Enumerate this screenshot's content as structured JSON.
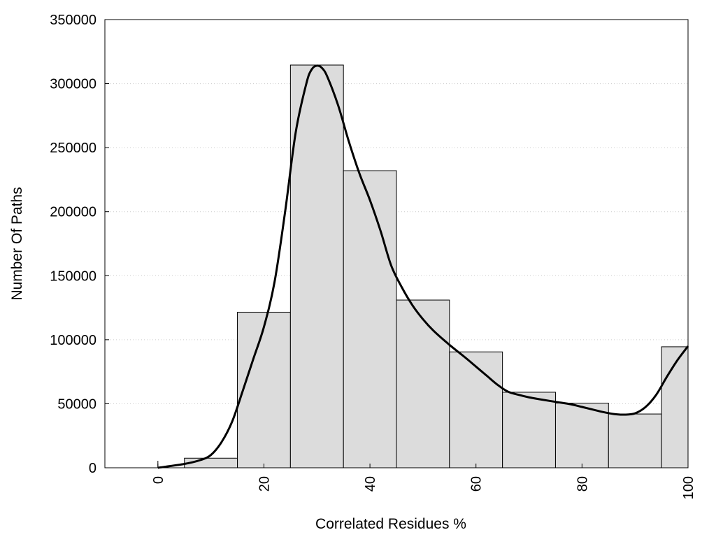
{
  "chart_data": {
    "type": "bar",
    "title": "",
    "xlabel": "Correlated Residues %",
    "ylabel": "Number Of Paths",
    "xlim": [
      -10,
      100
    ],
    "ylim": [
      0,
      350000
    ],
    "xticks": [
      "0",
      "20",
      "40",
      "60",
      "80",
      "100"
    ],
    "yticks": [
      "0",
      "50000",
      "100000",
      "150000",
      "200000",
      "250000",
      "300000",
      "350000"
    ],
    "grid": "horizontal dotted",
    "legend": "none",
    "colors": {
      "bar_fill": "#dcdcdc",
      "bar_edge": "#000000",
      "curve": "#000000",
      "grid": "#cccccc"
    },
    "bars": [
      {
        "x0": -5,
        "x1": 5,
        "value": 0
      },
      {
        "x0": 5,
        "x1": 15,
        "value": 7500
      },
      {
        "x0": 15,
        "x1": 25,
        "value": 121500
      },
      {
        "x0": 25,
        "x1": 35,
        "value": 314500
      },
      {
        "x0": 35,
        "x1": 45,
        "value": 232000
      },
      {
        "x0": 45,
        "x1": 55,
        "value": 131000
      },
      {
        "x0": 55,
        "x1": 65,
        "value": 90500
      },
      {
        "x0": 65,
        "x1": 75,
        "value": 59000
      },
      {
        "x0": 75,
        "x1": 85,
        "value": 50500
      },
      {
        "x0": 85,
        "x1": 95,
        "value": 42000
      },
      {
        "x0": 95,
        "x1": 100,
        "value": 94500
      }
    ],
    "curve": {
      "x": [
        0,
        5,
        8,
        10,
        12,
        14,
        16,
        18,
        20,
        22,
        24,
        26,
        28,
        29,
        30,
        31,
        32,
        34,
        36,
        38,
        40,
        42,
        44,
        46,
        48,
        50,
        52,
        55,
        58,
        60,
        62,
        64,
        66,
        68,
        70,
        72,
        75,
        78,
        80,
        82,
        84,
        86,
        88,
        90,
        92,
        94,
        96,
        98,
        100
      ],
      "y": [
        0,
        3000,
        6000,
        10000,
        20000,
        36000,
        60000,
        85000,
        110000,
        145000,
        200000,
        262000,
        300000,
        311000,
        314000,
        312000,
        305000,
        283000,
        255000,
        230000,
        209000,
        185000,
        158000,
        141000,
        127000,
        116000,
        107000,
        96000,
        86000,
        79000,
        72000,
        65000,
        59500,
        57000,
        55000,
        53500,
        51500,
        49500,
        47500,
        45500,
        43500,
        42000,
        41500,
        42500,
        47500,
        57000,
        71000,
        84000,
        95000
      ]
    }
  }
}
